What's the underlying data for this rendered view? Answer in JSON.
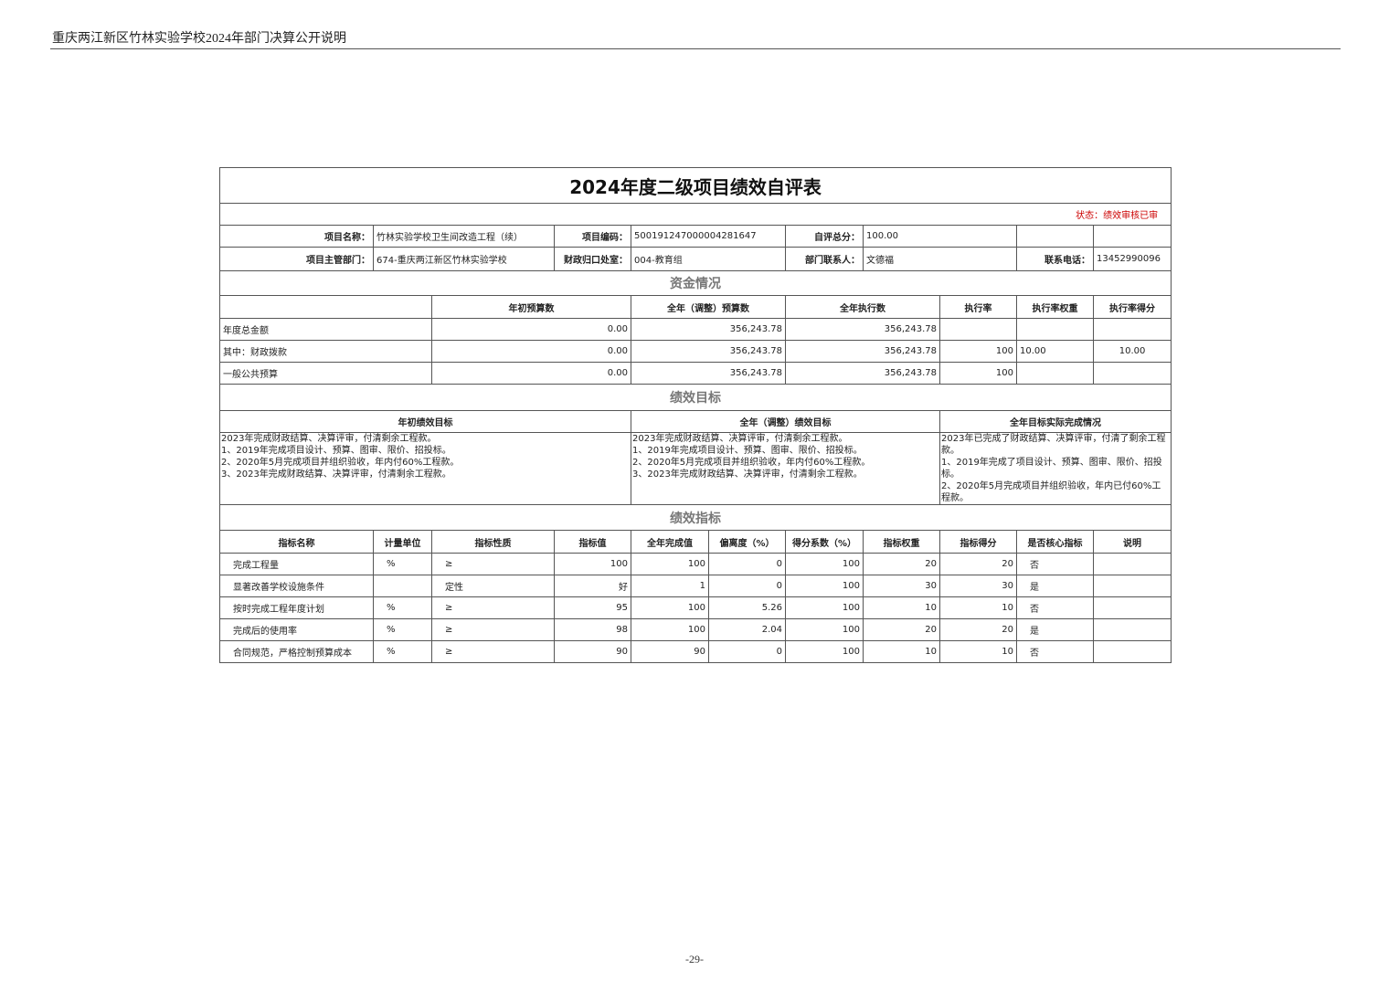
{
  "document_header": "重庆两江新区竹林实验学校2024年部门决算公开说明",
  "page_number": "-29-",
  "table": {
    "title": "2024年度二级项目绩效自评表",
    "status": "状态：绩效审核已审",
    "info": {
      "project_name": {
        "label": "项目名称：",
        "value": "竹林实验学校卫生间改造工程（续）"
      },
      "project_code": {
        "label": "项目编码：",
        "value": "500191247000004281647"
      },
      "self_score": {
        "label": "自评总分：",
        "value": "100.00"
      },
      "department": {
        "label": "项目主管部门：",
        "value": "674-重庆两江新区竹林实验学校"
      },
      "finance_office": {
        "label": "财政归口处室：",
        "value": "004-教育组"
      },
      "contact": {
        "label": "部门联系人：",
        "value": "文德福"
      },
      "phone": {
        "label": "联系电话：",
        "value": "13452990096"
      }
    },
    "funds": {
      "section_title": "资金情况",
      "columns": [
        "年初预算数",
        "全年（调整）预算数",
        "全年执行数",
        "执行率",
        "执行率权重",
        "执行率得分"
      ],
      "rows": [
        {
          "label": "年度总金额",
          "values": [
            "0.00",
            "356,243.78",
            "356,243.78"
          ]
        },
        {
          "label": "其中：财政拨款",
          "values": [
            "0.00",
            "356,243.78",
            "356,243.78",
            "100",
            "10.00",
            "10.00"
          ]
        },
        {
          "label": "一般公共预算",
          "values": [
            "0.00",
            "356,243.78",
            "356,243.78",
            "100"
          ]
        }
      ]
    },
    "goals": {
      "section_title": "绩效目标",
      "columns": [
        "年初绩效目标",
        "全年（调整）绩效目标",
        "全年目标实际完成情况"
      ],
      "texts": [
        "2023年完成财政结算、决算评审，付清剩余工程款。\n1、2019年完成项目设计、预算、图审、限价、招投标。\n2、2020年5月完成项目并组织验收，年内付60%工程款。\n3、2023年完成财政结算、决算评审，付清剩余工程款。",
        "2023年完成财政结算、决算评审，付清剩余工程款。\n1、2019年完成项目设计、预算、图审、限价、招投标。\n2、2020年5月完成项目并组织验收，年内付60%工程款。\n3、2023年完成财政结算、决算评审，付清剩余工程款。",
        "2023年已完成了财政结算、决算评审，付清了剩余工程款。\n1、2019年完成了项目设计、预算、图审、限价、招投标。\n2、2020年5月完成项目并组织验收，年内已付60%工程款。"
      ]
    },
    "indicators": {
      "section_title": "绩效指标",
      "columns": [
        "指标名称",
        "计量单位",
        "指标性质",
        "指标值",
        "全年完成值",
        "偏离度（%）",
        "得分系数（%）",
        "指标权重",
        "指标得分",
        "是否核心指标",
        "说明"
      ],
      "rows": [
        {
          "name": "完成工程量",
          "unit": "%",
          "nature": "≥",
          "target": "100",
          "actual": "100",
          "deviation": "0",
          "coefficient": "100",
          "weight": "20",
          "score": "20",
          "core": "否"
        },
        {
          "name": "显著改善学校设施条件",
          "nature": "定性",
          "target": "好",
          "actual": "1",
          "deviation": "0",
          "coefficient": "100",
          "weight": "30",
          "score": "30",
          "core": "是"
        },
        {
          "name": "按时完成工程年度计划",
          "unit": "%",
          "nature": "≥",
          "target": "95",
          "actual": "100",
          "deviation": "5.26",
          "coefficient": "100",
          "weight": "10",
          "score": "10",
          "core": "否"
        },
        {
          "name": "完成后的使用率",
          "unit": "%",
          "nature": "≥",
          "target": "98",
          "actual": "100",
          "deviation": "2.04",
          "coefficient": "100",
          "weight": "20",
          "score": "20",
          "core": "是"
        },
        {
          "name": "合同规范，严格控制预算成本",
          "unit": "%",
          "nature": "≥",
          "target": "90",
          "actual": "90",
          "deviation": "0",
          "coefficient": "100",
          "weight": "10",
          "score": "10",
          "core": "否"
        }
      ]
    }
  }
}
